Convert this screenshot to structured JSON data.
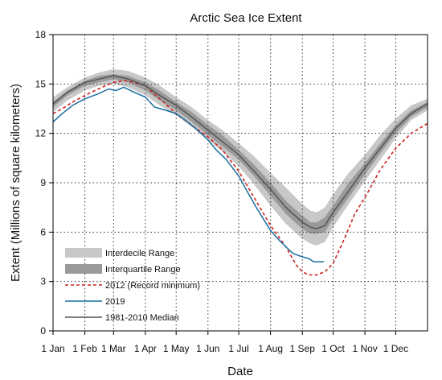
{
  "chart_data": {
    "type": "area",
    "title": "Arctic Sea Ice Extent",
    "xlabel": "Date",
    "ylabel": "Extent (Millions of square kilometers)",
    "ylim": [
      0,
      18
    ],
    "yticks": [
      0,
      3,
      6,
      9,
      12,
      15,
      18
    ],
    "xlim": [
      1,
      366
    ],
    "month_ticks": [
      {
        "label": "1 Jan",
        "day": 1
      },
      {
        "label": "1 Feb",
        "day": 32
      },
      {
        "label": "1 Mar",
        "day": 60
      },
      {
        "label": "1 Apr",
        "day": 91
      },
      {
        "label": "1 May",
        "day": 121
      },
      {
        "label": "1 Jun",
        "day": 152
      },
      {
        "label": "1 Jul",
        "day": 182
      },
      {
        "label": "1 Aug",
        "day": 213
      },
      {
        "label": "1 Sep",
        "day": 244
      },
      {
        "label": "1 Oct",
        "day": 274
      },
      {
        "label": "1 Nov",
        "day": 305
      },
      {
        "label": "1 Dec",
        "day": 335
      }
    ],
    "grid": true,
    "legend_position": "bottom-left",
    "bands": [
      {
        "name": "Interdecile Range",
        "color": "#c8c8c8",
        "x": [
          1,
          15,
          32,
          46,
          60,
          74,
          91,
          105,
          121,
          136,
          152,
          166,
          182,
          197,
          213,
          228,
          244,
          252,
          258,
          266,
          274,
          288,
          305,
          320,
          335,
          350,
          366
        ],
        "low": [
          13.3,
          14.0,
          14.6,
          14.9,
          15.0,
          14.8,
          14.3,
          13.7,
          13.1,
          12.4,
          11.6,
          10.9,
          10.0,
          8.9,
          7.6,
          6.5,
          5.6,
          5.3,
          5.2,
          5.4,
          6.3,
          7.6,
          9.1,
          10.4,
          11.7,
          12.8,
          13.4
        ],
        "high": [
          14.2,
          14.8,
          15.4,
          15.7,
          15.9,
          15.8,
          15.4,
          14.9,
          14.2,
          13.6,
          12.8,
          12.2,
          11.4,
          10.6,
          9.6,
          8.7,
          7.7,
          7.3,
          7.2,
          7.5,
          8.3,
          9.5,
          10.7,
          11.9,
          12.9,
          13.7,
          14.1
        ]
      },
      {
        "name": "Interquartile Range",
        "color": "#9a9a9a",
        "x": [
          1,
          15,
          32,
          46,
          60,
          74,
          91,
          105,
          121,
          136,
          152,
          166,
          182,
          197,
          213,
          228,
          244,
          252,
          258,
          266,
          274,
          288,
          305,
          320,
          335,
          350,
          366
        ],
        "low": [
          13.6,
          14.3,
          14.9,
          15.1,
          15.3,
          15.1,
          14.6,
          14.0,
          13.4,
          12.7,
          11.9,
          11.2,
          10.4,
          9.4,
          8.2,
          7.1,
          6.2,
          5.9,
          5.9,
          6.0,
          6.8,
          8.0,
          9.5,
          10.8,
          12.0,
          13.0,
          13.6
        ],
        "high": [
          13.9,
          14.6,
          15.2,
          15.5,
          15.6,
          15.5,
          15.1,
          14.6,
          13.9,
          13.3,
          12.5,
          11.9,
          11.0,
          10.1,
          9.0,
          7.9,
          7.0,
          6.6,
          6.6,
          6.9,
          7.6,
          8.9,
          10.2,
          11.4,
          12.5,
          13.4,
          13.9
        ]
      }
    ],
    "series": [
      {
        "name": "2012 (Record minimum)",
        "color": "#cc2222",
        "style": "dashed",
        "x": [
          1,
          10,
          20,
          32,
          45,
          60,
          70,
          80,
          91,
          105,
          121,
          136,
          152,
          166,
          182,
          197,
          213,
          228,
          238,
          244,
          250,
          258,
          266,
          274,
          285,
          295,
          305,
          320,
          335,
          350,
          366
        ],
        "values": [
          13.2,
          13.5,
          13.9,
          14.3,
          14.7,
          15.1,
          15.2,
          15.1,
          14.9,
          14.1,
          13.2,
          12.5,
          11.8,
          11.0,
          9.7,
          8.1,
          6.4,
          5.1,
          4.0,
          3.6,
          3.4,
          3.4,
          3.6,
          4.1,
          5.6,
          7.1,
          8.1,
          9.8,
          11.1,
          12.0,
          12.6
        ]
      },
      {
        "name": "2019",
        "color": "#1a6fa0",
        "style": "solid",
        "x": [
          1,
          10,
          20,
          32,
          45,
          55,
          62,
          70,
          80,
          91,
          100,
          111,
          121,
          130,
          140,
          152,
          160,
          170,
          182,
          190,
          200,
          213,
          220,
          228,
          235,
          244,
          250,
          255,
          260,
          265
        ],
        "values": [
          12.7,
          13.2,
          13.7,
          14.1,
          14.4,
          14.7,
          14.6,
          14.8,
          14.5,
          14.2,
          13.6,
          13.4,
          13.2,
          12.8,
          12.3,
          11.6,
          11.0,
          10.4,
          9.4,
          8.5,
          7.4,
          6.1,
          5.6,
          5.1,
          4.7,
          4.5,
          4.4,
          4.2,
          4.2,
          4.2
        ]
      },
      {
        "name": "1981-2010 Median",
        "color": "#555555",
        "style": "solid",
        "x": [
          1,
          15,
          32,
          46,
          60,
          74,
          91,
          105,
          121,
          136,
          152,
          166,
          182,
          197,
          213,
          228,
          244,
          252,
          258,
          266,
          274,
          288,
          305,
          320,
          335,
          350,
          366
        ],
        "values": [
          13.8,
          14.5,
          15.1,
          15.3,
          15.5,
          15.3,
          14.9,
          14.3,
          13.7,
          13.0,
          12.2,
          11.5,
          10.7,
          9.7,
          8.6,
          7.5,
          6.6,
          6.3,
          6.2,
          6.4,
          7.2,
          8.4,
          9.9,
          11.1,
          12.3,
          13.2,
          13.8
        ]
      }
    ]
  }
}
